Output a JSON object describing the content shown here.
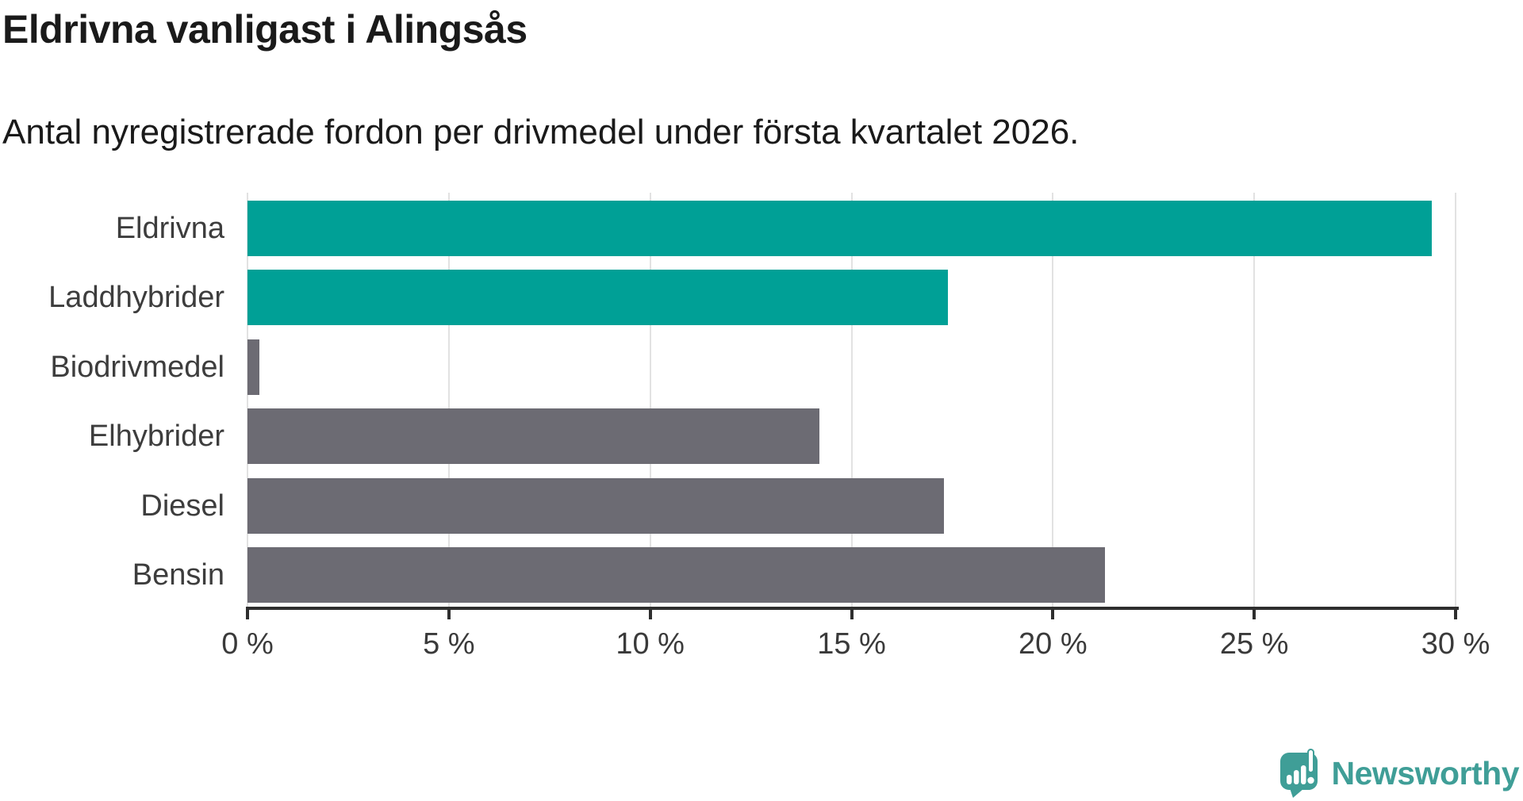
{
  "header": {
    "title": "Eldrivna vanligast i Alingsås",
    "subtitle": "Antal nyregistrerade fordon per drivmedel under första kvartalet 2026."
  },
  "chart_data": {
    "type": "bar",
    "orientation": "horizontal",
    "title": "Eldrivna vanligast i Alingsås",
    "subtitle": "Antal nyregistrerade fordon per drivmedel under första kvartalet 2026.",
    "categories": [
      "Eldrivna",
      "Laddhybrider",
      "Biodrivmedel",
      "Elhybrider",
      "Diesel",
      "Bensin"
    ],
    "values": [
      29.4,
      17.4,
      0.3,
      14.2,
      17.3,
      21.3
    ],
    "unit": "%",
    "bar_colors": [
      "#00a096",
      "#00a096",
      "#6c6b73",
      "#6c6b73",
      "#6c6b73",
      "#6c6b73"
    ],
    "highlight_color": "#00a096",
    "default_color": "#6c6b73",
    "xlim": [
      0,
      30
    ],
    "x_ticks": [
      {
        "value": 0,
        "label": "0 %"
      },
      {
        "value": 5,
        "label": "5 %"
      },
      {
        "value": 10,
        "label": "10 %"
      },
      {
        "value": 15,
        "label": "15 %"
      },
      {
        "value": 20,
        "label": "20 %"
      },
      {
        "value": 25,
        "label": "25 %"
      },
      {
        "value": 30,
        "label": "30 %"
      }
    ],
    "grid": true,
    "legend": false
  },
  "footer": {
    "brand": "Newsworthy",
    "logo_color": "#3f9e97"
  }
}
